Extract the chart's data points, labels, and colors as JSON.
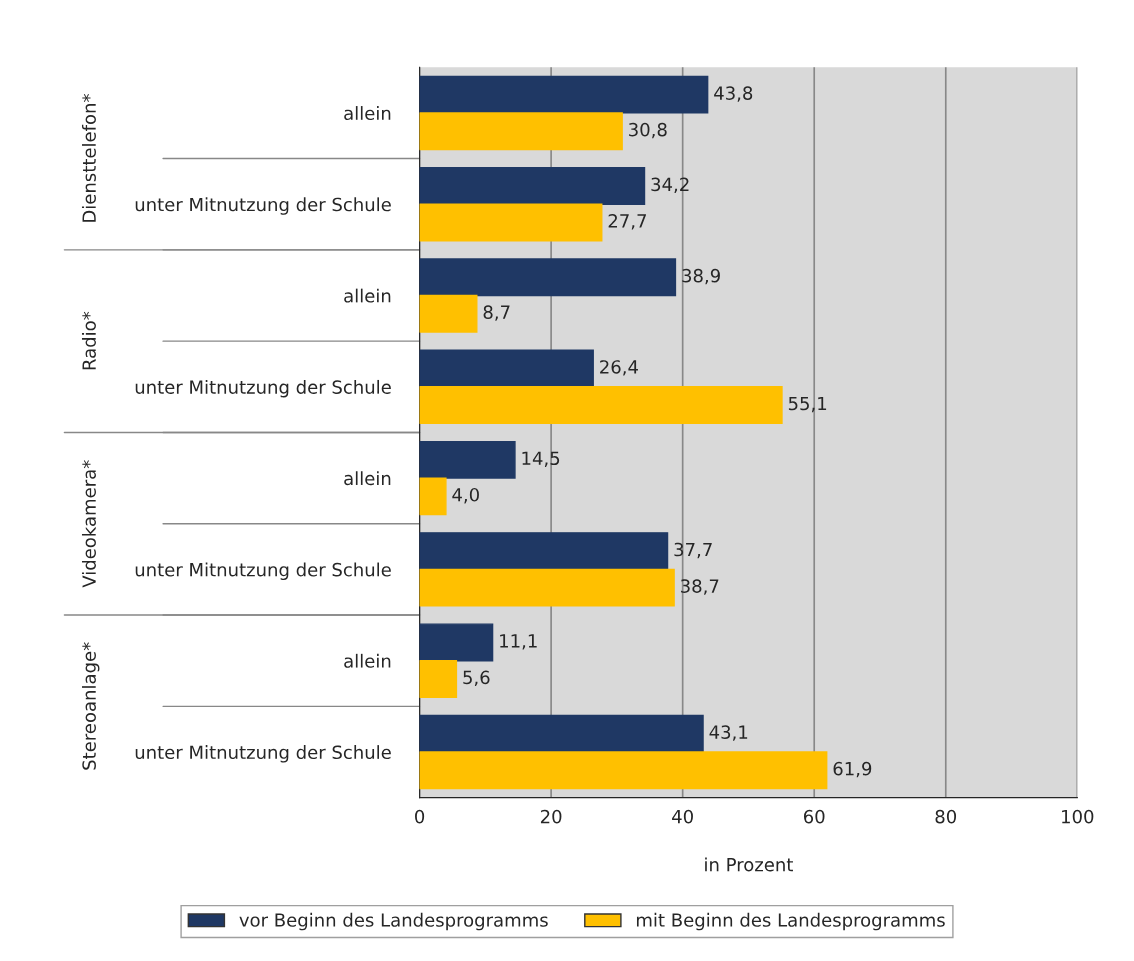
{
  "chart_data": {
    "type": "bar",
    "orientation": "horizontal",
    "categories": [
      "allein",
      "unter Mitnutzung der Schule",
      "allein",
      "unter Mitnutzung der Schule",
      "allein",
      "unter Mitnutzung der Schule",
      "allein",
      "unter Mitnutzung der Schule"
    ],
    "series": [
      {
        "name": "vor Beginn des Landesprogramms",
        "color": "#1f3864",
        "values": [
          43.8,
          34.2,
          38.9,
          26.4,
          14.5,
          37.7,
          11.1,
          43.1
        ],
        "value_labels": [
          "43,8",
          "34,2",
          "38,9",
          "26,4",
          "14,5",
          "37,7",
          "11,1",
          "43,1"
        ]
      },
      {
        "name": "mit Beginn des Landesprogramms",
        "color": "#ffc000",
        "values": [
          30.8,
          27.7,
          8.7,
          55.1,
          4.0,
          38.7,
          5.6,
          61.9
        ],
        "value_labels": [
          "30,8",
          "27,7",
          "8,7",
          "55,1",
          "4,0",
          "38,7",
          "5,6",
          "61,9"
        ]
      }
    ],
    "annotations": [
      "Diensttelefon*",
      "Radio*",
      "Videokamera*",
      "Stereoanlage*"
    ],
    "xlabel": "in Prozent",
    "xlim": [
      0,
      100
    ],
    "xticks": [
      0,
      20,
      40,
      60,
      80,
      100
    ],
    "grid": "x",
    "legend": "bottom"
  }
}
